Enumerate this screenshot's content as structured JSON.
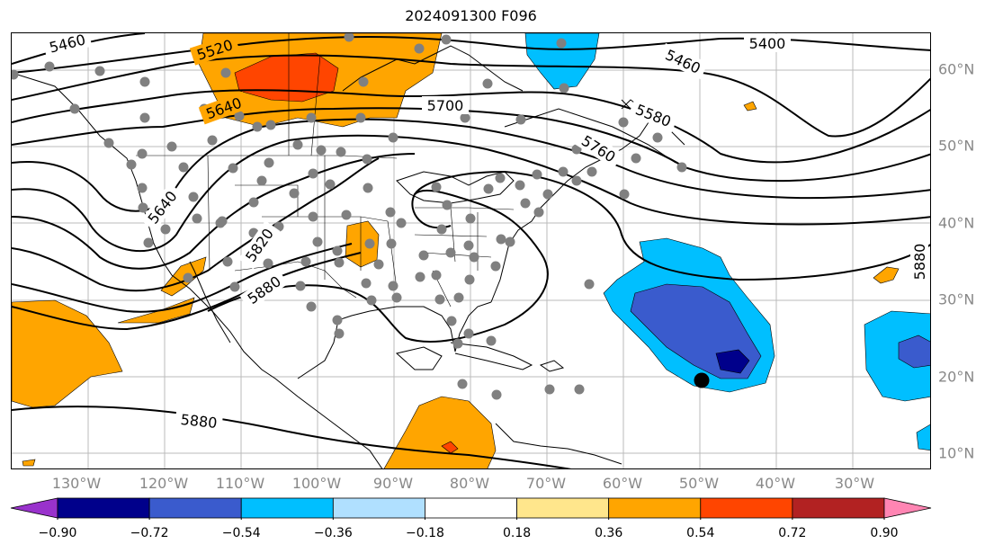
{
  "title": "2024091300 F096",
  "lon_ticks": [
    "130°W",
    "120°W",
    "110°W",
    "100°W",
    "90°W",
    "80°W",
    "70°W",
    "60°W",
    "50°W",
    "40°W",
    "30°W"
  ],
  "lat_ticks": [
    "60°N",
    "50°N",
    "40°N",
    "30°N",
    "20°N",
    "10°N"
  ],
  "contour_labels": [
    "5460",
    "5520",
    "5640",
    "5700",
    "5400",
    "5460",
    "5580",
    "5760",
    "5640",
    "5820",
    "5880",
    "5880",
    "5880"
  ],
  "colorbar": {
    "ticks": [
      "−0.90",
      "−0.72",
      "−0.54",
      "−0.36",
      "−0.18",
      "0.18",
      "0.36",
      "0.54",
      "0.72",
      "0.90"
    ],
    "colors": [
      "#9932cc",
      "#00008b",
      "#3a5bcd",
      "#00bfff",
      "#b0e0ff",
      "#ffffff",
      "#ffe68c",
      "#ffa500",
      "#ff4500",
      "#b22222",
      "#ff85b3"
    ]
  },
  "anomaly_colors": {
    "orange": "#ffa500",
    "red_orange": "#ff4500",
    "light_blue": "#00bfff",
    "mid_blue": "#3a5bcd",
    "dark_blue": "#00008b"
  },
  "markers": {
    "station_color": "#808080",
    "storm_color": "#000000"
  }
}
